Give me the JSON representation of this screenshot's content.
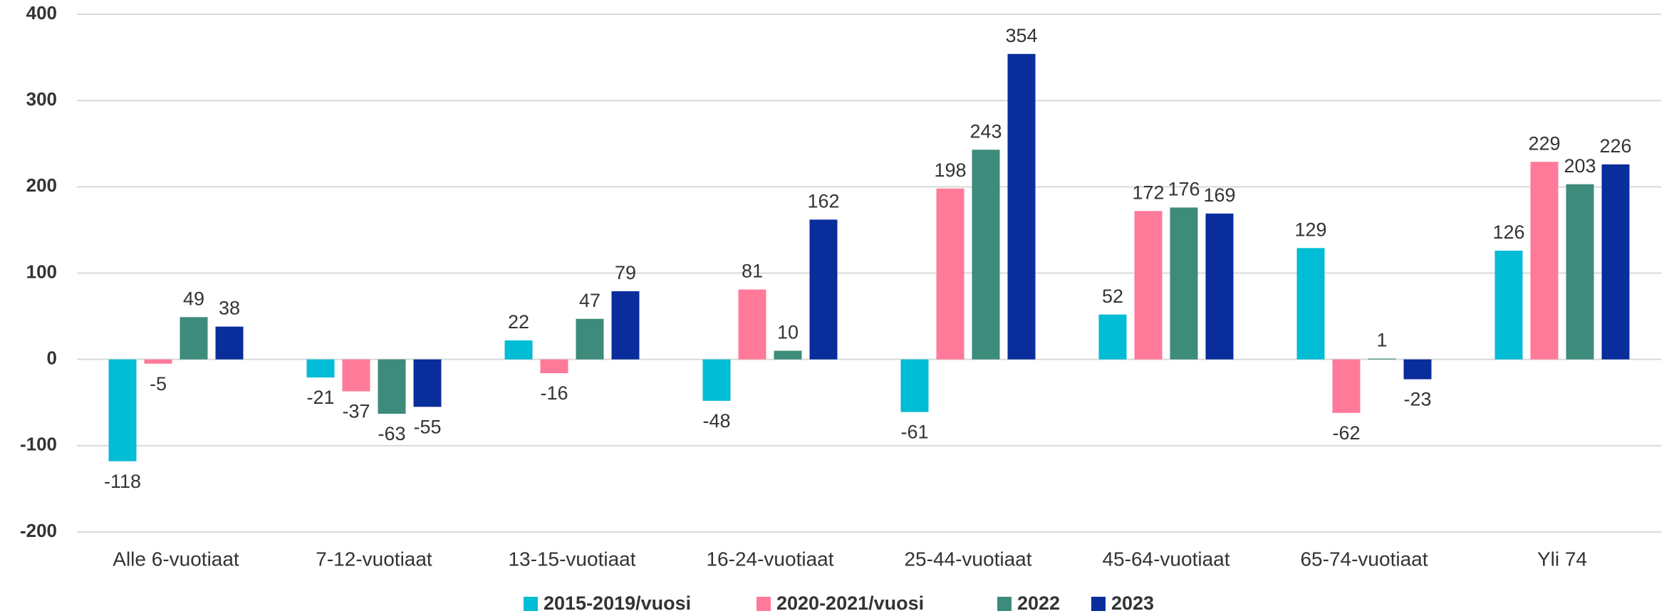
{
  "chart_data": {
    "type": "bar",
    "categories": [
      "Alle 6-vuotiaat",
      "7-12-vuotiaat",
      "13-15-vuotiaat",
      "16-24-vuotiaat",
      "25-44-vuotiaat",
      "45-64-vuotiaat",
      "65-74-vuotiaat",
      "Yli 74"
    ],
    "series": [
      {
        "name": "2015-2019/vuosi",
        "color": "#00bcd4",
        "values": [
          -118,
          -21,
          22,
          -48,
          -61,
          52,
          129,
          126
        ]
      },
      {
        "name": "2020-2021/vuosi",
        "color": "#ff7a99",
        "values": [
          -5,
          -37,
          -16,
          81,
          198,
          172,
          -62,
          229
        ]
      },
      {
        "name": "2022",
        "color": "#3d8b7b",
        "values": [
          49,
          -63,
          47,
          10,
          243,
          176,
          1,
          203
        ]
      },
      {
        "name": "2023",
        "color": "#0a2d9c",
        "values": [
          38,
          -55,
          79,
          162,
          354,
          169,
          -23,
          226
        ]
      }
    ],
    "ylim": [
      -200,
      400
    ],
    "yticks": [
      -200,
      -100,
      0,
      100,
      200,
      300,
      400
    ],
    "grid": true,
    "legend": "bottom"
  }
}
